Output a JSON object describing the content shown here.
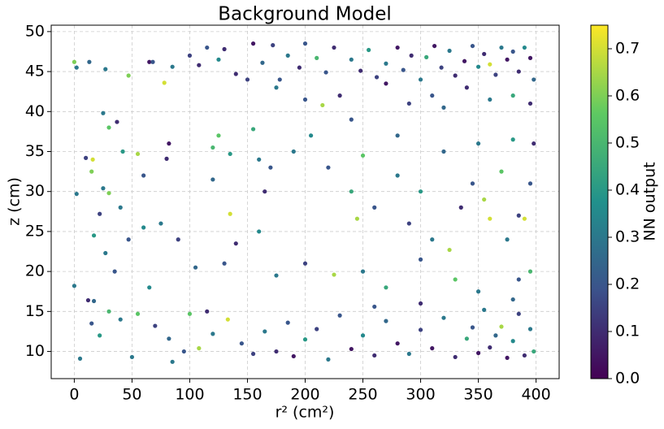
{
  "chart_data": {
    "type": "scatter",
    "title": "Background Model",
    "xlabel": "r² (cm²)",
    "ylabel": "z (cm)",
    "colorbar_label": "NN output",
    "colormap": "viridis",
    "clim": [
      0,
      0.75
    ],
    "cticks": [
      {
        "value": 0,
        "label": "0.0"
      },
      0.1,
      0.2,
      0.3,
      0.4,
      0.5,
      0.6,
      0.7
    ],
    "xlim": [
      -20,
      420
    ],
    "ylim": [
      6.6,
      50.8
    ],
    "xticks": [
      0,
      50,
      100,
      150,
      200,
      250,
      300,
      350,
      400
    ],
    "yticks": [
      10,
      15,
      20,
      25,
      30,
      35,
      40,
      45,
      50
    ],
    "grid": true,
    "points": [
      [
        0,
        46.2,
        0.6
      ],
      [
        2,
        45.5,
        0.3
      ],
      [
        13,
        46.2,
        0.25
      ],
      [
        27,
        45.3,
        0.3
      ],
      [
        47,
        44.5,
        0.6
      ],
      [
        65,
        46.2,
        0.05
      ],
      [
        68,
        46.2,
        0.2
      ],
      [
        85,
        45.6,
        0.3
      ],
      [
        78,
        43.6,
        0.7
      ],
      [
        100,
        47,
        0.15
      ],
      [
        108,
        45.8,
        0.1
      ],
      [
        115,
        48,
        0.2
      ],
      [
        125,
        46.5,
        0.35
      ],
      [
        130,
        47.8,
        0.1
      ],
      [
        140,
        44.7,
        0.1
      ],
      [
        155,
        48.5,
        0.05
      ],
      [
        163,
        46.1,
        0.25
      ],
      [
        172,
        48.3,
        0.15
      ],
      [
        178,
        44,
        0.2
      ],
      [
        185,
        47,
        0.3
      ],
      [
        195,
        45.5,
        0.1
      ],
      [
        200,
        48.5,
        0.2
      ],
      [
        210,
        46.7,
        0.5
      ],
      [
        218,
        44.9,
        0.2
      ],
      [
        225,
        48,
        0.1
      ],
      [
        240,
        46.5,
        0.3
      ],
      [
        248,
        45.1,
        0.1
      ],
      [
        255,
        47.7,
        0.4
      ],
      [
        262,
        44.3,
        0.15
      ],
      [
        270,
        46,
        0.3
      ],
      [
        280,
        48,
        0.05
      ],
      [
        285,
        45.2,
        0.2
      ],
      [
        292,
        47,
        0.1
      ],
      [
        300,
        44,
        0.3
      ],
      [
        305,
        46.8,
        0.45
      ],
      [
        312,
        48.2,
        0.05
      ],
      [
        318,
        45.5,
        0.15
      ],
      [
        325,
        47.6,
        0.3
      ],
      [
        330,
        44.5,
        0.1
      ],
      [
        338,
        46.3,
        0.05
      ],
      [
        345,
        48.2,
        0.2
      ],
      [
        350,
        45.6,
        0.35
      ],
      [
        355,
        47.2,
        0.1
      ],
      [
        360,
        45.9,
        0.7
      ],
      [
        365,
        44.6,
        0.15
      ],
      [
        370,
        48,
        0.3
      ],
      [
        375,
        46.5,
        0.05
      ],
      [
        380,
        47.5,
        0.2
      ],
      [
        385,
        45,
        0.1
      ],
      [
        390,
        48,
        0.35
      ],
      [
        395,
        46.7,
        0.05
      ],
      [
        398,
        44,
        0.25
      ],
      [
        340,
        43,
        0.1
      ],
      [
        310,
        42,
        0.2
      ],
      [
        290,
        41,
        0.15
      ],
      [
        360,
        41.5,
        0.3
      ],
      [
        380,
        42,
        0.45
      ],
      [
        230,
        42,
        0.1
      ],
      [
        200,
        41.5,
        0.2
      ],
      [
        175,
        43,
        0.3
      ],
      [
        150,
        44,
        0.15
      ],
      [
        270,
        43.5,
        0.05
      ],
      [
        320,
        40.5,
        0.25
      ],
      [
        395,
        41,
        0.1
      ],
      [
        25,
        39.8,
        0.3
      ],
      [
        30,
        38,
        0.55
      ],
      [
        37,
        38.7,
        0.1
      ],
      [
        42,
        35,
        0.4
      ],
      [
        55,
        34.7,
        0.65
      ],
      [
        16,
        34,
        0.7
      ],
      [
        10,
        34.2,
        0.15
      ],
      [
        15,
        32.5,
        0.6
      ],
      [
        25,
        30.4,
        0.3
      ],
      [
        30,
        29.8,
        0.6
      ],
      [
        2,
        29.7,
        0.3
      ],
      [
        22,
        27.2,
        0.15
      ],
      [
        40,
        28,
        0.3
      ],
      [
        60,
        32,
        0.2
      ],
      [
        80,
        34.1,
        0.1
      ],
      [
        82,
        36,
        0.05
      ],
      [
        120,
        35.5,
        0.5
      ],
      [
        125,
        37,
        0.55
      ],
      [
        135,
        34.7,
        0.4
      ],
      [
        155,
        37.8,
        0.45
      ],
      [
        160,
        34,
        0.3
      ],
      [
        170,
        33,
        0.2
      ],
      [
        165,
        30,
        0.1
      ],
      [
        135,
        27.2,
        0.7
      ],
      [
        140,
        23.5,
        0.1
      ],
      [
        160,
        25,
        0.35
      ],
      [
        120,
        31.5,
        0.25
      ],
      [
        190,
        35,
        0.3
      ],
      [
        205,
        37,
        0.35
      ],
      [
        220,
        33,
        0.2
      ],
      [
        240,
        30,
        0.45
      ],
      [
        245,
        26.6,
        0.65
      ],
      [
        250,
        34.5,
        0.55
      ],
      [
        260,
        28,
        0.2
      ],
      [
        280,
        32,
        0.3
      ],
      [
        290,
        26,
        0.15
      ],
      [
        300,
        30,
        0.4
      ],
      [
        310,
        24,
        0.3
      ],
      [
        320,
        35,
        0.25
      ],
      [
        325,
        22.7,
        0.65
      ],
      [
        335,
        28,
        0.1
      ],
      [
        345,
        31,
        0.2
      ],
      [
        355,
        29,
        0.65
      ],
      [
        360,
        26.6,
        0.7
      ],
      [
        370,
        32.5,
        0.55
      ],
      [
        375,
        24,
        0.3
      ],
      [
        385,
        27,
        0.15
      ],
      [
        390,
        26.6,
        0.7
      ],
      [
        395,
        31,
        0.2
      ],
      [
        398,
        36,
        0.1
      ],
      [
        380,
        36.5,
        0.4
      ],
      [
        350,
        36,
        0.3
      ],
      [
        280,
        37,
        0.25
      ],
      [
        240,
        39,
        0.2
      ],
      [
        215,
        40.8,
        0.65
      ],
      [
        60,
        25.5,
        0.35
      ],
      [
        75,
        26,
        0.3
      ],
      [
        90,
        24,
        0.15
      ],
      [
        47,
        24,
        0.2
      ],
      [
        17,
        24.5,
        0.4
      ],
      [
        27,
        22.3,
        0.3
      ],
      [
        0,
        18.2,
        0.3
      ],
      [
        35,
        20,
        0.2
      ],
      [
        65,
        18,
        0.35
      ],
      [
        105,
        20.5,
        0.25
      ],
      [
        130,
        21,
        0.2
      ],
      [
        175,
        19.5,
        0.3
      ],
      [
        200,
        21,
        0.15
      ],
      [
        225,
        19.6,
        0.65
      ],
      [
        250,
        20,
        0.3
      ],
      [
        270,
        18,
        0.45
      ],
      [
        300,
        21.5,
        0.2
      ],
      [
        330,
        19,
        0.55
      ],
      [
        350,
        17.5,
        0.3
      ],
      [
        385,
        19,
        0.2
      ],
      [
        395,
        20,
        0.5
      ],
      [
        5,
        9.1,
        0.3
      ],
      [
        12,
        16.4,
        0.1
      ],
      [
        17,
        16.3,
        0.25
      ],
      [
        15,
        13.5,
        0.2
      ],
      [
        22,
        12,
        0.4
      ],
      [
        30,
        15,
        0.5
      ],
      [
        40,
        14,
        0.3
      ],
      [
        50,
        9.3,
        0.3
      ],
      [
        55,
        14.7,
        0.55
      ],
      [
        70,
        13.2,
        0.15
      ],
      [
        82,
        11.6,
        0.25
      ],
      [
        85,
        8.7,
        0.3
      ],
      [
        95,
        10,
        0.2
      ],
      [
        100,
        14.7,
        0.55
      ],
      [
        108,
        10.4,
        0.65
      ],
      [
        115,
        15,
        0.1
      ],
      [
        120,
        12.2,
        0.3
      ],
      [
        133,
        14,
        0.7
      ],
      [
        145,
        11,
        0.2
      ],
      [
        155,
        9.7,
        0.15
      ],
      [
        165,
        12.5,
        0.3
      ],
      [
        175,
        10,
        0.1
      ],
      [
        185,
        13.6,
        0.2
      ],
      [
        190,
        9.4,
        0.05
      ],
      [
        200,
        11.5,
        0.4
      ],
      [
        210,
        12.8,
        0.15
      ],
      [
        220,
        9,
        0.3
      ],
      [
        230,
        14.5,
        0.2
      ],
      [
        240,
        10.3,
        0.05
      ],
      [
        250,
        12,
        0.35
      ],
      [
        260,
        9.5,
        0.1
      ],
      [
        270,
        13.8,
        0.25
      ],
      [
        280,
        11,
        0.05
      ],
      [
        290,
        9.7,
        0.3
      ],
      [
        300,
        12.7,
        0.15
      ],
      [
        310,
        10.4,
        0.05
      ],
      [
        320,
        14.2,
        0.3
      ],
      [
        330,
        9.3,
        0.1
      ],
      [
        340,
        11.6,
        0.45
      ],
      [
        345,
        13,
        0.2
      ],
      [
        350,
        9.8,
        0.05
      ],
      [
        355,
        15.2,
        0.3
      ],
      [
        360,
        10.5,
        0.1
      ],
      [
        365,
        12,
        0.25
      ],
      [
        370,
        13.1,
        0.65
      ],
      [
        375,
        9.2,
        0.05
      ],
      [
        380,
        11.3,
        0.35
      ],
      [
        385,
        14.7,
        0.15
      ],
      [
        390,
        9.5,
        0.1
      ],
      [
        395,
        12.8,
        0.3
      ],
      [
        398,
        10,
        0.45
      ],
      [
        260,
        15.6,
        0.2
      ],
      [
        300,
        16,
        0.1
      ],
      [
        380,
        16.5,
        0.25
      ]
    ]
  }
}
